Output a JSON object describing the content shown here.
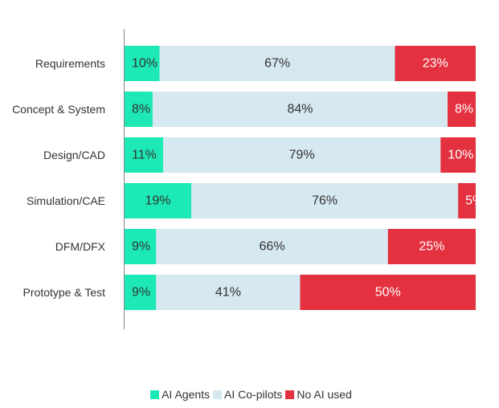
{
  "chart_data": {
    "type": "bar",
    "orientation": "horizontal",
    "stacked": true,
    "title": "",
    "xlabel": "",
    "ylabel": "",
    "xlim": [
      0,
      100
    ],
    "grid": false,
    "legend_position": "bottom",
    "categories": [
      "Requirements",
      "Concept & System",
      "Design/CAD",
      "Simulation/CAE",
      "DFM/DFX",
      "Prototype & Test"
    ],
    "series": [
      {
        "name": "AI Agents",
        "color": "#1de9b6",
        "label_color": "#333333",
        "values": [
          10,
          8,
          11,
          19,
          9,
          9
        ]
      },
      {
        "name": "AI Co-pilots",
        "color": "#d6e8f0",
        "label_color": "#333333",
        "values": [
          67,
          84,
          79,
          76,
          66,
          41
        ]
      },
      {
        "name": "No AI used",
        "color": "#e3313f",
        "label_color": "#ffffff",
        "values": [
          23,
          8,
          10,
          5,
          25,
          50
        ]
      }
    ]
  }
}
